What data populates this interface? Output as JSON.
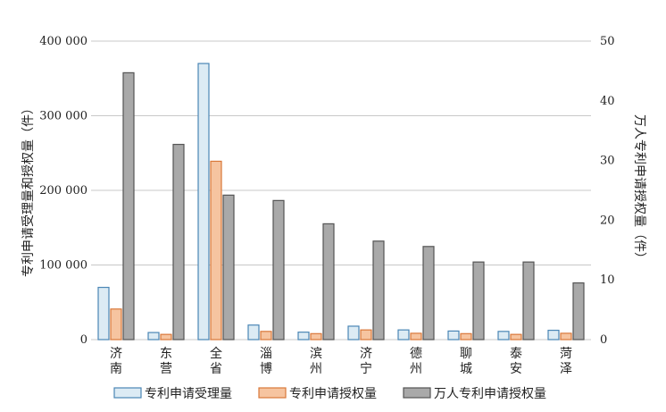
{
  "chart_data": {
    "type": "bar",
    "categories": [
      [
        "济",
        "南"
      ],
      [
        "东",
        "营"
      ],
      [
        "全",
        "省"
      ],
      [
        "淄",
        "博"
      ],
      [
        "滨",
        "州"
      ],
      [
        "济",
        "宁"
      ],
      [
        "德",
        "州"
      ],
      [
        "聊",
        "城"
      ],
      [
        "泰",
        "安"
      ],
      [
        "菏",
        "泽"
      ]
    ],
    "series": [
      {
        "name": "专利申请受理量",
        "axis": "left",
        "color": "#dcebf4",
        "stroke": "#4a86b5",
        "values": [
          70000,
          9500,
          370000,
          19500,
          10000,
          18000,
          13000,
          11500,
          11000,
          12500
        ]
      },
      {
        "name": "专利申请授权量",
        "axis": "left",
        "color": "#f6c4a0",
        "stroke": "#d9783a",
        "values": [
          41000,
          7000,
          239000,
          11000,
          8000,
          13000,
          8500,
          8000,
          7000,
          8500
        ]
      },
      {
        "name": "万人专利申请授权量",
        "axis": "right",
        "color": "#a9a9a9",
        "stroke": "#555555",
        "values": [
          44.7,
          32.7,
          24.2,
          23.3,
          19.4,
          16.5,
          15.6,
          13.0,
          13.0,
          9.5
        ]
      }
    ],
    "ylabel": "专利申请受理量和授权量（件）",
    "y2label": "万人专利申请授权量（件）",
    "ylim": [
      0,
      400000
    ],
    "y2lim": [
      0,
      50
    ],
    "yticks": [
      "0",
      "100 000",
      "200 000",
      "300 000",
      "400 000"
    ],
    "y2ticks": [
      "0",
      "10",
      "20",
      "30",
      "40",
      "50"
    ],
    "grid": true,
    "legend": "bottom"
  }
}
